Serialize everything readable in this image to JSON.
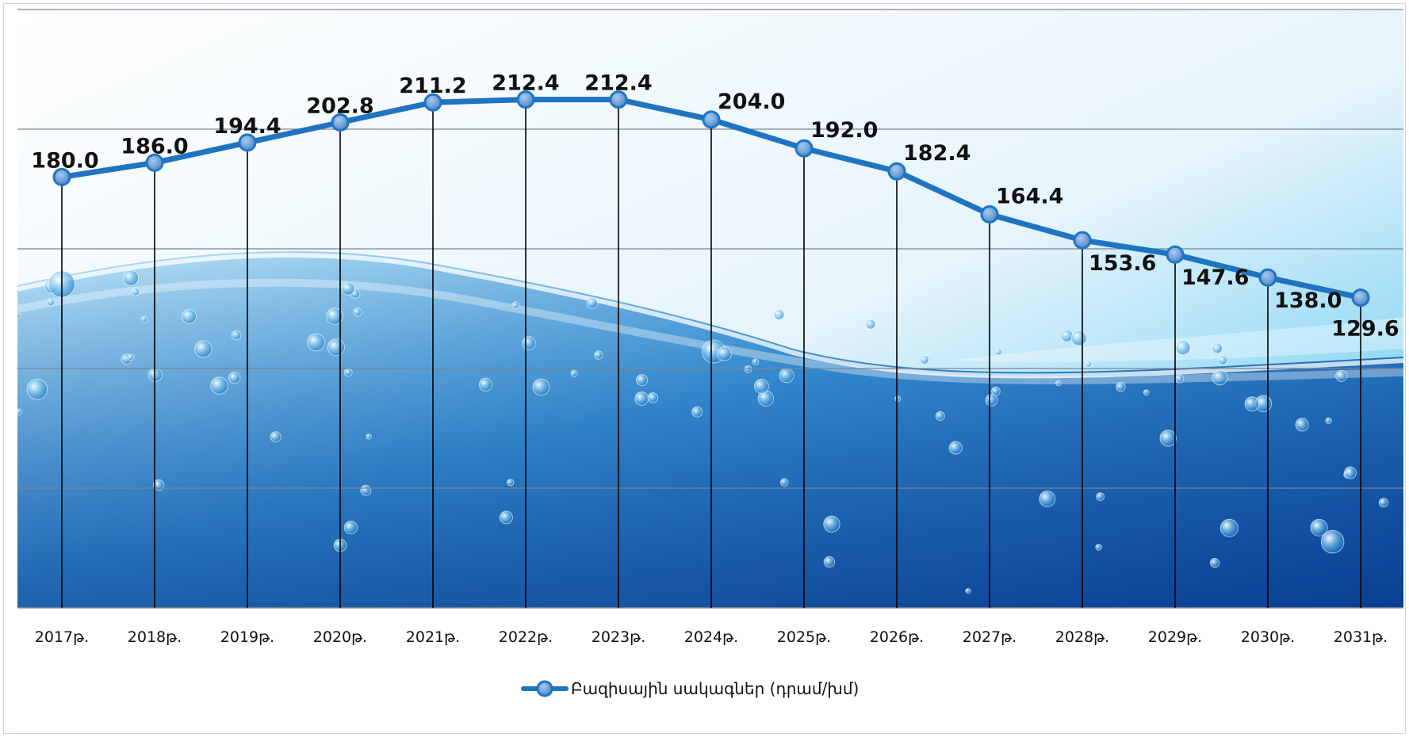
{
  "chart_data": {
    "type": "line",
    "categories": [
      "2017թ.",
      "2018թ.",
      "2019թ.",
      "2020թ.",
      "2021թ.",
      "2022թ.",
      "2023թ.",
      "2024թ.",
      "2025թ.",
      "2026թ.",
      "2027թ.",
      "2028թ.",
      "2029թ.",
      "2030թ.",
      "2031թ."
    ],
    "series": [
      {
        "name": "Բազիսային սակագներ (դրամ/խմ)",
        "values": [
          180.0,
          186.0,
          194.4,
          202.8,
          211.2,
          212.4,
          212.4,
          204.0,
          192.0,
          182.4,
          164.4,
          153.6,
          147.6,
          138.0,
          129.6
        ],
        "labels": [
          "180.0",
          "186.0",
          "194.4",
          "202.8",
          "211.2",
          "212.4",
          "212.4",
          "204.0",
          "192.0",
          "182.4",
          "164.4",
          "153.6",
          "147.6",
          "138.0",
          "129.6"
        ],
        "color": "#1f74c2"
      }
    ],
    "title": "",
    "xlabel": "",
    "ylabel": "",
    "ylim": [
      0,
      250
    ],
    "y_gridlines": [
      0,
      50,
      100,
      150,
      200,
      250
    ],
    "y_tick_labels_shown": false,
    "grid": true,
    "drop_lines": true,
    "legend": "bottom-center",
    "background": "water-splash"
  }
}
